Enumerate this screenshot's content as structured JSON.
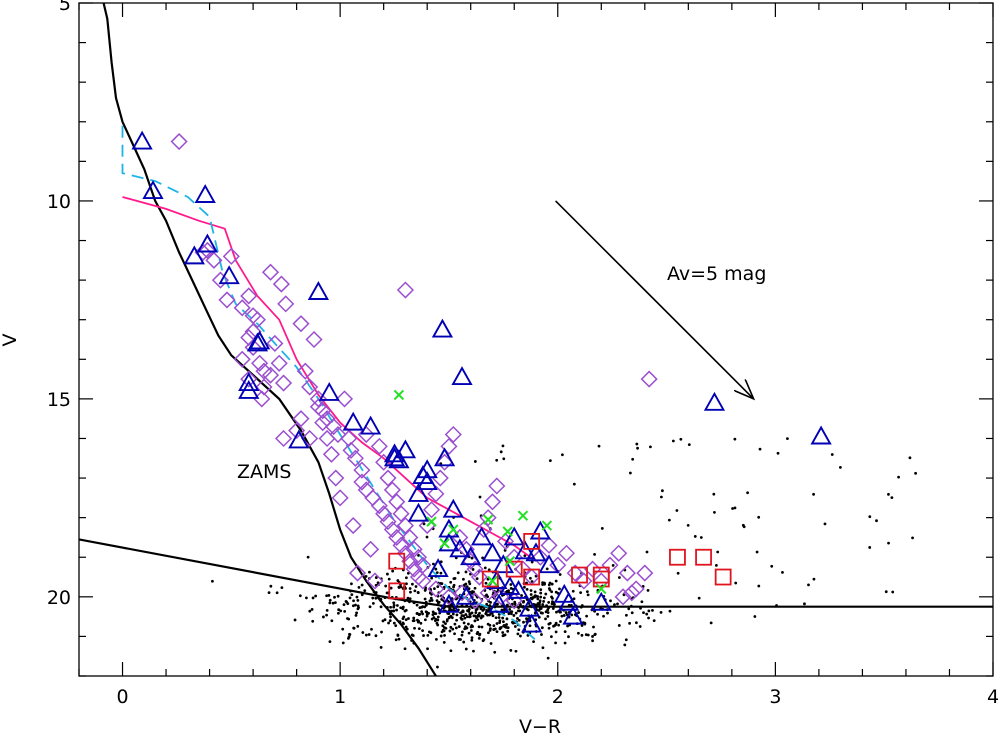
{
  "chart_data": {
    "type": "scatter",
    "xlabel": "V−R",
    "ylabel": "V",
    "xlim": [
      -0.2,
      4.0
    ],
    "ylim": [
      22.0,
      5.0
    ],
    "y_inverted": true,
    "x_ticks": [
      "0",
      "1",
      "2",
      "3",
      "4"
    ],
    "y_ticks": [
      "5",
      "10",
      "15",
      "20"
    ],
    "annotations": {
      "zams": "ZAMS",
      "extinction": "Av=5 mag"
    },
    "colors": {
      "triangles": "#0000b4",
      "diamonds": "#9b4fd0",
      "squares": "#e0141e",
      "crosses": "#22e022",
      "dots": "#000000",
      "isochrone_solid": "#ff1a8c",
      "isochrone_dashed": "#1eb4e6",
      "zams": "#000000"
    },
    "series": [
      {
        "name": "triangles",
        "marker": "triangle",
        "points": [
          [
            0.09,
            8.5
          ],
          [
            0.14,
            9.75
          ],
          [
            0.38,
            9.85
          ],
          [
            0.33,
            11.4
          ],
          [
            0.39,
            11.1
          ],
          [
            0.49,
            11.9
          ],
          [
            0.58,
            14.8
          ],
          [
            0.58,
            14.6
          ],
          [
            0.63,
            13.55
          ],
          [
            0.81,
            16.05
          ],
          [
            0.9,
            12.3
          ],
          [
            0.95,
            14.85
          ],
          [
            1.06,
            15.6
          ],
          [
            1.14,
            15.7
          ],
          [
            1.25,
            16.5
          ],
          [
            1.25,
            16.4
          ],
          [
            1.27,
            16.55
          ],
          [
            1.3,
            16.3
          ],
          [
            1.36,
            17.4
          ],
          [
            1.36,
            17.9
          ],
          [
            1.38,
            16.95
          ],
          [
            1.4,
            16.8
          ],
          [
            1.4,
            17.1
          ],
          [
            1.48,
            16.5
          ],
          [
            1.47,
            13.25
          ],
          [
            1.56,
            14.45
          ],
          [
            1.52,
            17.8
          ],
          [
            1.5,
            18.3
          ],
          [
            1.65,
            18.5
          ],
          [
            1.5,
            18.65
          ],
          [
            1.55,
            18.8
          ],
          [
            1.6,
            19.0
          ],
          [
            1.7,
            18.9
          ],
          [
            1.75,
            19.2
          ],
          [
            1.8,
            18.5
          ],
          [
            1.85,
            18.85
          ],
          [
            1.9,
            18.9
          ],
          [
            1.92,
            18.35
          ],
          [
            1.96,
            19.2
          ],
          [
            1.72,
            19.6
          ],
          [
            1.78,
            19.75
          ],
          [
            1.82,
            19.85
          ],
          [
            1.87,
            20.3
          ],
          [
            1.88,
            20.7
          ],
          [
            2.03,
            19.95
          ],
          [
            2.05,
            20.15
          ],
          [
            2.2,
            20.15
          ],
          [
            2.07,
            20.5
          ],
          [
            1.73,
            20.2
          ],
          [
            1.58,
            20.0
          ],
          [
            1.45,
            19.3
          ],
          [
            1.5,
            20.2
          ],
          [
            2.72,
            15.1
          ],
          [
            3.21,
            15.95
          ],
          [
            0.62,
            13.6
          ]
        ]
      },
      {
        "name": "diamonds",
        "marker": "diamond",
        "points": [
          [
            0.26,
            8.5
          ],
          [
            0.37,
            11.3
          ],
          [
            0.39,
            11.25
          ],
          [
            0.42,
            11.5
          ],
          [
            0.45,
            12.0
          ],
          [
            0.5,
            11.4
          ],
          [
            0.48,
            12.5
          ],
          [
            0.55,
            12.7
          ],
          [
            0.58,
            12.4
          ],
          [
            0.6,
            12.9
          ],
          [
            0.62,
            13.0
          ],
          [
            0.6,
            13.3
          ],
          [
            0.58,
            13.45
          ],
          [
            0.6,
            13.7
          ],
          [
            0.63,
            14.1
          ],
          [
            0.65,
            14.3
          ],
          [
            0.55,
            14.0
          ],
          [
            0.58,
            14.5
          ],
          [
            0.65,
            14.7
          ],
          [
            0.68,
            14.4
          ],
          [
            0.7,
            13.6
          ],
          [
            0.72,
            14.1
          ],
          [
            0.74,
            14.6
          ],
          [
            0.64,
            15.0
          ],
          [
            0.68,
            11.8
          ],
          [
            0.73,
            12.1
          ],
          [
            0.75,
            12.6
          ],
          [
            0.82,
            13.1
          ],
          [
            0.88,
            13.5
          ],
          [
            0.84,
            14.3
          ],
          [
            0.86,
            14.7
          ],
          [
            0.9,
            15.0
          ],
          [
            0.92,
            15.3
          ],
          [
            0.94,
            15.5
          ],
          [
            0.97,
            15.7
          ],
          [
            0.99,
            15.9
          ],
          [
            1.02,
            15.0
          ],
          [
            1.04,
            16.0
          ],
          [
            1.05,
            16.3
          ],
          [
            1.07,
            16.5
          ],
          [
            1.1,
            16.8
          ],
          [
            1.1,
            17.1
          ],
          [
            1.12,
            17.3
          ],
          [
            1.15,
            17.5
          ],
          [
            1.18,
            17.7
          ],
          [
            1.2,
            17.9
          ],
          [
            1.22,
            18.1
          ],
          [
            1.24,
            18.3
          ],
          [
            1.26,
            18.5
          ],
          [
            1.28,
            18.7
          ],
          [
            1.3,
            18.9
          ],
          [
            1.32,
            19.1
          ],
          [
            1.34,
            19.3
          ],
          [
            1.36,
            19.5
          ],
          [
            1.38,
            19.6
          ],
          [
            1.4,
            18.2
          ],
          [
            1.42,
            17.8
          ],
          [
            1.44,
            17.4
          ],
          [
            1.46,
            17.0
          ],
          [
            1.48,
            16.6
          ],
          [
            1.5,
            16.2
          ],
          [
            1.52,
            15.9
          ],
          [
            1.3,
            12.25
          ],
          [
            1.12,
            15.9
          ],
          [
            1.18,
            16.2
          ],
          [
            1.2,
            16.6
          ],
          [
            1.22,
            17.0
          ],
          [
            1.24,
            17.3
          ],
          [
            1.26,
            17.6
          ],
          [
            1.28,
            17.9
          ],
          [
            1.3,
            18.2
          ],
          [
            1.32,
            18.5
          ],
          [
            1.34,
            18.8
          ],
          [
            1.36,
            19.0
          ],
          [
            1.38,
            19.2
          ],
          [
            1.55,
            18.5
          ],
          [
            1.58,
            18.8
          ],
          [
            1.6,
            19.1
          ],
          [
            1.62,
            19.3
          ],
          [
            1.64,
            19.5
          ],
          [
            1.66,
            18.3
          ],
          [
            1.68,
            18.0
          ],
          [
            1.7,
            17.6
          ],
          [
            1.72,
            17.2
          ],
          [
            1.76,
            18.6
          ],
          [
            1.8,
            19.0
          ],
          [
            1.84,
            19.3
          ],
          [
            1.88,
            19.5
          ],
          [
            1.92,
            19.0
          ],
          [
            1.96,
            18.7
          ],
          [
            2.0,
            19.2
          ],
          [
            2.04,
            18.9
          ],
          [
            2.08,
            19.4
          ],
          [
            2.12,
            19.6
          ],
          [
            2.16,
            19.3
          ],
          [
            2.2,
            19.6
          ],
          [
            2.24,
            19.2
          ],
          [
            2.28,
            18.9
          ],
          [
            2.32,
            19.4
          ],
          [
            2.36,
            19.8
          ],
          [
            2.4,
            19.4
          ],
          [
            2.42,
            14.5
          ],
          [
            1.08,
            19.4
          ],
          [
            1.16,
            19.6
          ],
          [
            1.14,
            18.8
          ],
          [
            1.06,
            18.2
          ],
          [
            1.0,
            17.5
          ],
          [
            0.98,
            17.0
          ],
          [
            0.96,
            16.4
          ],
          [
            0.94,
            16.0
          ],
          [
            0.92,
            15.6
          ],
          [
            0.9,
            15.2
          ],
          [
            0.82,
            15.5
          ],
          [
            0.8,
            15.8
          ],
          [
            0.86,
            16.0
          ],
          [
            0.74,
            16.0
          ],
          [
            1.44,
            19.8
          ],
          [
            1.5,
            20.0
          ],
          [
            1.56,
            19.9
          ],
          [
            1.62,
            20.1
          ],
          [
            1.68,
            19.9
          ],
          [
            1.74,
            20.0
          ],
          [
            1.8,
            20.1
          ],
          [
            2.3,
            20.0
          ],
          [
            2.34,
            19.9
          ]
        ]
      },
      {
        "name": "squares",
        "marker": "square",
        "points": [
          [
            1.26,
            19.1
          ],
          [
            1.26,
            19.85
          ],
          [
            1.8,
            19.3
          ],
          [
            1.88,
            18.6
          ],
          [
            2.1,
            19.45
          ],
          [
            2.2,
            19.45
          ],
          [
            2.2,
            19.55
          ],
          [
            2.55,
            19.0
          ],
          [
            2.67,
            19.0
          ],
          [
            2.76,
            19.5
          ],
          [
            1.88,
            19.5
          ],
          [
            1.69,
            19.55
          ]
        ]
      },
      {
        "name": "crosses",
        "marker": "cross",
        "points": [
          [
            1.27,
            14.9
          ],
          [
            1.42,
            18.1
          ],
          [
            1.48,
            18.65
          ],
          [
            1.52,
            18.3
          ],
          [
            1.68,
            18.05
          ],
          [
            1.77,
            18.35
          ],
          [
            1.84,
            17.95
          ],
          [
            1.95,
            18.2
          ],
          [
            1.78,
            19.1
          ],
          [
            1.7,
            19.6
          ],
          [
            2.2,
            19.8
          ]
        ]
      }
    ],
    "curves": [
      {
        "name": "zams",
        "style": "solid",
        "points": [
          [
            -0.1,
            4.7
          ],
          [
            -0.07,
            5.4
          ],
          [
            -0.05,
            6.5
          ],
          [
            -0.03,
            7.4
          ],
          [
            0.0,
            8.0
          ],
          [
            0.05,
            8.6
          ],
          [
            0.1,
            9.2
          ],
          [
            0.15,
            10.0
          ],
          [
            0.2,
            10.5
          ],
          [
            0.26,
            11.3
          ],
          [
            0.32,
            12.0
          ],
          [
            0.38,
            12.7
          ],
          [
            0.44,
            13.4
          ],
          [
            0.5,
            13.9
          ],
          [
            0.6,
            14.4
          ],
          [
            0.72,
            15.0
          ],
          [
            0.82,
            15.8
          ],
          [
            0.9,
            16.6
          ],
          [
            0.95,
            17.4
          ],
          [
            1.0,
            18.3
          ],
          [
            1.05,
            19.0
          ],
          [
            1.12,
            19.6
          ],
          [
            1.2,
            20.2
          ],
          [
            1.28,
            20.7
          ],
          [
            1.36,
            21.3
          ],
          [
            1.44,
            22.0
          ]
        ]
      },
      {
        "name": "extinction_limit",
        "style": "solid",
        "points": [
          [
            -0.2,
            18.55
          ],
          [
            1.25,
            20.05
          ],
          [
            1.5,
            20.25
          ],
          [
            2.0,
            20.25
          ],
          [
            4.0,
            20.25
          ]
        ]
      },
      {
        "name": "isochrone_solid",
        "style": "solid",
        "points": [
          [
            0.0,
            9.9
          ],
          [
            0.2,
            10.2
          ],
          [
            0.35,
            10.5
          ],
          [
            0.47,
            10.7
          ],
          [
            0.52,
            11.5
          ],
          [
            0.62,
            12.4
          ],
          [
            0.72,
            13.0
          ],
          [
            0.8,
            14.0
          ],
          [
            0.9,
            14.9
          ],
          [
            1.0,
            15.6
          ],
          [
            1.1,
            16.1
          ],
          [
            1.2,
            16.5
          ],
          [
            1.3,
            17.0
          ],
          [
            1.4,
            17.5
          ],
          [
            1.5,
            17.8
          ],
          [
            1.6,
            18.1
          ],
          [
            1.7,
            18.4
          ],
          [
            1.8,
            18.7
          ],
          [
            1.9,
            19.1
          ]
        ]
      },
      {
        "name": "isochrone_dashed",
        "style": "dashed",
        "points": [
          [
            0.0,
            8.1
          ],
          [
            0.0,
            9.3
          ],
          [
            0.15,
            9.5
          ],
          [
            0.3,
            9.9
          ],
          [
            0.4,
            10.4
          ],
          [
            0.46,
            11.8
          ],
          [
            0.52,
            12.6
          ],
          [
            0.62,
            13.1
          ],
          [
            0.7,
            13.6
          ],
          [
            0.8,
            14.2
          ],
          [
            0.9,
            15.0
          ],
          [
            1.0,
            15.9
          ],
          [
            1.08,
            16.6
          ],
          [
            1.16,
            17.3
          ],
          [
            1.24,
            18.0
          ],
          [
            1.32,
            18.6
          ],
          [
            1.4,
            19.2
          ],
          [
            1.5,
            19.8
          ],
          [
            1.6,
            20.1
          ],
          [
            1.7,
            20.3
          ],
          [
            1.8,
            20.6
          ],
          [
            1.9,
            21.1
          ]
        ]
      }
    ],
    "reddening_vector": {
      "from": [
        1.99,
        10.0
      ],
      "to": [
        2.9,
        15.0
      ]
    },
    "background_dots": {
      "count": 900,
      "x_center": 1.6,
      "x_spread": 0.35,
      "y_center": 20.3,
      "y_spread": 0.45,
      "extra_x_max": 3.7,
      "extra_y_min": 16.0
    }
  }
}
